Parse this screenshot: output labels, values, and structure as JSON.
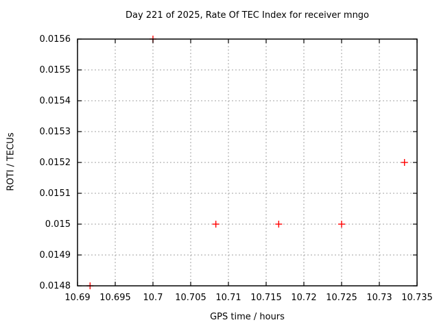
{
  "window": {
    "background_color": "#ffffff"
  },
  "chart_data": {
    "type": "scatter",
    "title": "Day 221 of 2025, Rate Of TEC Index for receiver mngo",
    "xlabel": "GPS time / hours",
    "ylabel": "ROTI / TECUs",
    "xlim": [
      10.69,
      10.735
    ],
    "ylim": [
      0.0148,
      0.0156
    ],
    "xticks": [
      10.69,
      10.695,
      10.7,
      10.705,
      10.71,
      10.715,
      10.72,
      10.725,
      10.73,
      10.735
    ],
    "xtick_labels": [
      "10.69",
      "10.695",
      "10.7",
      "10.705",
      "10.71",
      "10.715",
      "10.72",
      "10.725",
      "10.73",
      "10.735"
    ],
    "yticks": [
      0.0148,
      0.0149,
      0.015,
      0.0151,
      0.0152,
      0.0153,
      0.0154,
      0.0155,
      0.0156
    ],
    "ytick_labels": [
      "0.0148",
      "0.0149",
      "0.015",
      "0.0151",
      "0.0152",
      "0.0153",
      "0.0154",
      "0.0155",
      "0.0156"
    ],
    "grid": true,
    "legend_position": "none",
    "marker": "plus",
    "colors": {
      "marker": "#ff0000",
      "grid": "#a0a0a0",
      "axis": "#000000",
      "text": "#000000"
    },
    "series": [
      {
        "name": "ROTI",
        "points": [
          [
            10.691667,
            0.0148
          ],
          [
            10.7,
            0.0156
          ],
          [
            10.708333,
            0.015
          ],
          [
            10.716667,
            0.015
          ],
          [
            10.725,
            0.015
          ],
          [
            10.733333,
            0.0152
          ]
        ]
      }
    ]
  }
}
